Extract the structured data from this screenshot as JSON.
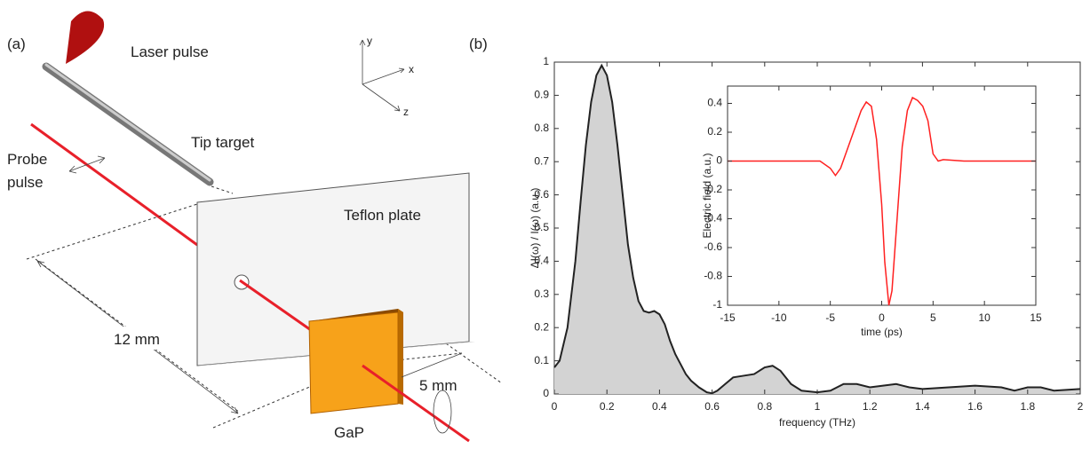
{
  "panel_labels": [
    "(a)",
    "(b)"
  ],
  "diagram": {
    "laser": "Laser pulse",
    "tip": "Tip target",
    "probe": [
      "Probe",
      "pulse"
    ],
    "plate": "Teflon plate",
    "distance_1": "12 mm",
    "distance_2": "5 mm",
    "crystal": "GaP",
    "axes": [
      "y",
      "x",
      "z"
    ]
  },
  "chart_data": [
    {
      "type": "area",
      "x_label": "frequency (THz)",
      "y_label": "ΔI(ω) / I(ω)  (a.u.)",
      "color": "#222222",
      "fill": "#d3d3d3",
      "x": [
        0,
        0.02,
        0.05,
        0.08,
        0.1,
        0.12,
        0.14,
        0.16,
        0.18,
        0.2,
        0.22,
        0.24,
        0.26,
        0.28,
        0.3,
        0.32,
        0.34,
        0.36,
        0.38,
        0.4,
        0.42,
        0.44,
        0.46,
        0.48,
        0.5,
        0.52,
        0.55,
        0.58,
        0.6,
        0.62,
        0.65,
        0.68,
        0.72,
        0.76,
        0.8,
        0.83,
        0.86,
        0.9,
        0.94,
        1,
        1.05,
        1.1,
        1.15,
        1.2,
        1.25,
        1.3,
        1.35,
        1.4,
        1.5,
        1.6,
        1.7,
        1.75,
        1.8,
        1.85,
        1.9,
        2
      ],
      "values": [
        0.08,
        0.1,
        0.2,
        0.4,
        0.58,
        0.75,
        0.88,
        0.96,
        0.99,
        0.96,
        0.88,
        0.75,
        0.6,
        0.45,
        0.35,
        0.28,
        0.25,
        0.245,
        0.25,
        0.24,
        0.21,
        0.16,
        0.12,
        0.09,
        0.06,
        0.04,
        0.02,
        0.005,
        0.002,
        0.01,
        0.03,
        0.05,
        0.055,
        0.06,
        0.08,
        0.085,
        0.07,
        0.03,
        0.01,
        0.005,
        0.01,
        0.03,
        0.03,
        0.02,
        0.025,
        0.03,
        0.02,
        0.015,
        0.02,
        0.025,
        0.02,
        0.01,
        0.02,
        0.02,
        0.01,
        0.015
      ],
      "xlim": [
        0,
        2
      ],
      "ylim": [
        0,
        1
      ],
      "xticks": [
        0,
        0.2,
        0.4,
        0.6,
        0.8,
        1,
        1.2,
        1.4,
        1.6,
        1.8,
        2
      ],
      "yticks": [
        0,
        0.1,
        0.2,
        0.3,
        0.4,
        0.5,
        0.6,
        0.7,
        0.8,
        0.9,
        1
      ]
    },
    {
      "type": "line",
      "x_label": "time (ps)",
      "y_label": "Electric field (a.u.)",
      "color": "#ff2020",
      "x": [
        -15,
        -10,
        -6,
        -5,
        -4.5,
        -4,
        -3.5,
        -3,
        -2.5,
        -2,
        -1.5,
        -1,
        -0.5,
        0,
        0.3,
        0.7,
        1,
        1.5,
        2,
        2.5,
        3,
        3.5,
        4,
        4.5,
        5,
        5.5,
        6,
        8,
        10,
        12,
        15
      ],
      "values": [
        0,
        0,
        0,
        -0.05,
        -0.1,
        -0.05,
        0.05,
        0.15,
        0.25,
        0.35,
        0.41,
        0.38,
        0.15,
        -0.3,
        -0.7,
        -1,
        -0.9,
        -0.4,
        0.1,
        0.35,
        0.44,
        0.42,
        0.38,
        0.28,
        0.05,
        0,
        0.01,
        0,
        0,
        0,
        0
      ],
      "xlim": [
        -15,
        15
      ],
      "ylim": [
        -1,
        0.52
      ],
      "xticks": [
        -15,
        -10,
        -5,
        0,
        5,
        10,
        15
      ],
      "yticks": [
        -1,
        -0.8,
        -0.6,
        -0.4,
        -0.2,
        0,
        0.2,
        0.4
      ]
    }
  ]
}
